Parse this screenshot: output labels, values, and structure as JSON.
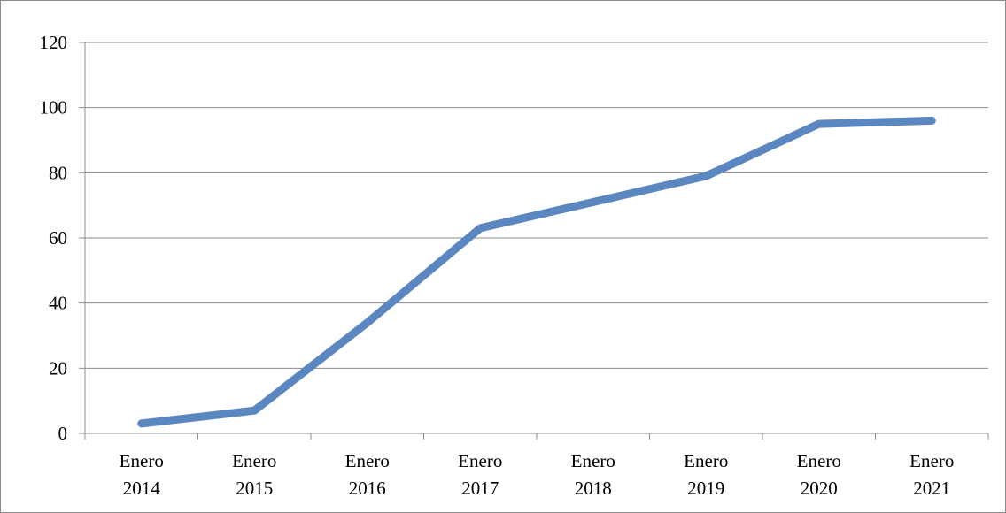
{
  "chart_data": {
    "type": "line",
    "title": "",
    "xlabel": "",
    "ylabel": "",
    "categories": [
      [
        "Enero",
        "2014"
      ],
      [
        "Enero",
        "2015"
      ],
      [
        "Enero",
        "2016"
      ],
      [
        "Enero",
        "2017"
      ],
      [
        "Enero",
        "2018"
      ],
      [
        "Enero",
        "2019"
      ],
      [
        "Enero",
        "2020"
      ],
      [
        "Enero",
        "2021"
      ]
    ],
    "series": [
      {
        "values": [
          3,
          7,
          34,
          63,
          71,
          79,
          95,
          96
        ],
        "color": "#5B87C0"
      }
    ],
    "ylim": [
      0,
      120
    ],
    "yticks": [
      0,
      20,
      40,
      60,
      80,
      100,
      120
    ],
    "grid": true,
    "legend": "none"
  }
}
